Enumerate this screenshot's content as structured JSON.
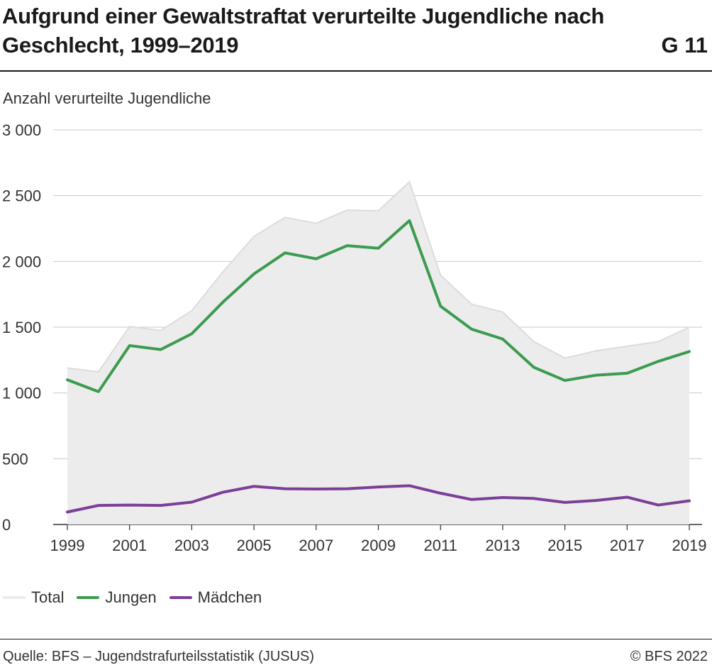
{
  "header": {
    "title": "Aufgrund einer Gewaltstraftat verurteilte Jugendliche nach Geschlecht, 1999–2019",
    "chart_id": "G 11"
  },
  "footer": {
    "source": "Quelle: BFS – Jugendstrafurteilsstatistik (JUSUS)",
    "copyright": "© BFS 2022"
  },
  "colors": {
    "total": "#ececec",
    "total_line": "#dcdcdc",
    "jungen": "#3c9b50",
    "maedchen": "#7b3f98",
    "grid": "#c8c8c8"
  },
  "chart_data": {
    "type": "line",
    "title": "Aufgrund einer Gewaltstraftat verurteilte Jugendliche nach Geschlecht, 1999–2019",
    "ylabel": "Anzahl verurteilte Jugendliche",
    "xlabel": "",
    "ylim": [
      0,
      3000
    ],
    "yticks": [
      0,
      500,
      1000,
      1500,
      2000,
      2500,
      3000
    ],
    "ytick_labels": [
      "0",
      "500",
      "1 000",
      "1 500",
      "2 000",
      "2 500",
      "3 000"
    ],
    "x": [
      1999,
      2000,
      2001,
      2002,
      2003,
      2004,
      2005,
      2006,
      2007,
      2008,
      2009,
      2010,
      2011,
      2012,
      2013,
      2014,
      2015,
      2016,
      2017,
      2018,
      2019
    ],
    "xtick_labels": [
      "1999",
      "2001",
      "2003",
      "2005",
      "2007",
      "2009",
      "2011",
      "2013",
      "2015",
      "2017",
      "2019"
    ],
    "grid": true,
    "legend_position": "bottom-left",
    "series": [
      {
        "name": "Total",
        "style": "area",
        "values": [
          1190,
          1160,
          1505,
          1475,
          1625,
          1920,
          2190,
          2335,
          2290,
          2390,
          2385,
          2605,
          1895,
          1675,
          1615,
          1390,
          1265,
          1320,
          1355,
          1390,
          1500
        ]
      },
      {
        "name": "Jungen",
        "style": "line",
        "values": [
          1100,
          1010,
          1360,
          1330,
          1450,
          1690,
          1905,
          2065,
          2020,
          2120,
          2100,
          2310,
          1660,
          1485,
          1410,
          1195,
          1095,
          1135,
          1150,
          1240,
          1315
        ]
      },
      {
        "name": "Mädchen",
        "style": "line",
        "values": [
          95,
          145,
          148,
          145,
          170,
          245,
          290,
          272,
          270,
          272,
          285,
          295,
          238,
          190,
          205,
          198,
          168,
          183,
          208,
          148,
          180
        ]
      }
    ]
  }
}
